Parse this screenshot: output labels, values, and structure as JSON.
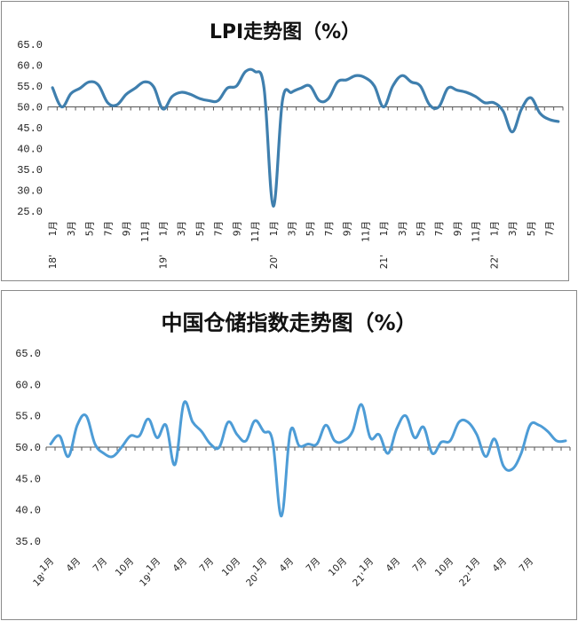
{
  "chart_data": [
    {
      "type": "line",
      "title": "LPI走势图（%）",
      "ylim": [
        25,
        65
      ],
      "yticks": [
        "25.0",
        "30.0",
        "35.0",
        "40.0",
        "45.0",
        "50.0",
        "55.0",
        "60.0",
        "65.0"
      ],
      "baseline": 50,
      "line_color": "#3f7fae",
      "x": [
        "18'1月",
        "2018-02",
        "3月",
        "2018-04",
        "5月",
        "2018-06",
        "7月",
        "2018-08",
        "9月",
        "2018-10",
        "11月",
        "2018-12",
        "19'1月",
        "2019-02",
        "3月",
        "2019-04",
        "5月",
        "2019-06",
        "7月",
        "2019-08",
        "9月",
        "2019-10",
        "11月",
        "2019-12",
        "20'1月",
        "2020-02",
        "3月",
        "2020-04",
        "5月",
        "2020-06",
        "7月",
        "2020-08",
        "9月",
        "2020-10",
        "11月",
        "2020-12",
        "21'1月",
        "2021-02",
        "3月",
        "2021-04",
        "5月",
        "2021-06",
        "7月",
        "2021-08",
        "9月",
        "2021-10",
        "11月",
        "2021-12",
        "22'1月",
        "2022-02",
        "3月",
        "2022-04",
        "5月",
        "2022-06",
        "7月",
        "2022-08"
      ],
      "tick_labels": [
        {
          "i": 0,
          "label": "1月"
        },
        {
          "i": 2,
          "label": "3月"
        },
        {
          "i": 4,
          "label": "5月"
        },
        {
          "i": 6,
          "label": "7月"
        },
        {
          "i": 8,
          "label": "9月"
        },
        {
          "i": 10,
          "label": "11月"
        },
        {
          "i": 12,
          "label": "1月"
        },
        {
          "i": 14,
          "label": "3月"
        },
        {
          "i": 16,
          "label": "5月"
        },
        {
          "i": 18,
          "label": "7月"
        },
        {
          "i": 20,
          "label": "9月"
        },
        {
          "i": 22,
          "label": "11月"
        },
        {
          "i": 24,
          "label": "1月"
        },
        {
          "i": 26,
          "label": "3月"
        },
        {
          "i": 28,
          "label": "5月"
        },
        {
          "i": 30,
          "label": "7月"
        },
        {
          "i": 32,
          "label": "9月"
        },
        {
          "i": 34,
          "label": "11月"
        },
        {
          "i": 36,
          "label": "1月"
        },
        {
          "i": 38,
          "label": "3月"
        },
        {
          "i": 40,
          "label": "5月"
        },
        {
          "i": 42,
          "label": "7月"
        },
        {
          "i": 44,
          "label": "9月"
        },
        {
          "i": 46,
          "label": "11月"
        },
        {
          "i": 48,
          "label": "1月"
        },
        {
          "i": 50,
          "label": "3月"
        },
        {
          "i": 52,
          "label": "5月"
        },
        {
          "i": 54,
          "label": "7月"
        }
      ],
      "year_labels": [
        {
          "i": 0,
          "label": "18'"
        },
        {
          "i": 12,
          "label": "19'"
        },
        {
          "i": 24,
          "label": "20'"
        },
        {
          "i": 36,
          "label": "21'"
        },
        {
          "i": 48,
          "label": "22'"
        }
      ],
      "values": [
        54.6,
        50.0,
        53.2,
        54.5,
        56.0,
        55.2,
        51.0,
        50.5,
        53.0,
        54.5,
        56.0,
        54.8,
        49.5,
        52.5,
        53.5,
        53.0,
        52.0,
        51.5,
        51.5,
        54.5,
        55.0,
        58.5,
        58.5,
        54.5,
        26.2,
        51.5,
        53.5,
        54.5,
        55.0,
        51.5,
        52.0,
        56.0,
        56.5,
        57.5,
        57.0,
        55.0,
        50.0,
        55.0,
        57.5,
        56.0,
        55.0,
        50.5,
        50.0,
        54.5,
        54.0,
        53.5,
        52.5,
        51.0,
        51.0,
        49.0,
        44.0,
        49.5,
        52.2,
        48.5,
        47.0,
        46.5
      ]
    },
    {
      "type": "line",
      "title": "中国仓储指数走势图（%）",
      "ylim": [
        35,
        65
      ],
      "yticks": [
        "35.0",
        "40.0",
        "45.0",
        "50.0",
        "55.0",
        "60.0",
        "65.0"
      ],
      "baseline": 50,
      "line_color": "#4d9cd6",
      "x": [
        "18'1月",
        "2018-02",
        "2018-03",
        "4月",
        "2018-05",
        "2018-06",
        "7月",
        "2018-08",
        "2018-09",
        "10月",
        "2018-11",
        "2018-12",
        "19'1月",
        "2019-02",
        "2019-03",
        "4月",
        "2019-05",
        "2019-06",
        "7月",
        "2019-08",
        "2019-09",
        "10月",
        "2019-11",
        "2019-12",
        "20'1月",
        "2020-02",
        "2020-03",
        "4月",
        "2020-05",
        "2020-06",
        "7月",
        "2020-08",
        "2020-09",
        "10月",
        "2020-11",
        "2020-12",
        "21'1月",
        "2021-02",
        "2021-03",
        "4月",
        "2021-05",
        "2021-06",
        "7月",
        "2021-08",
        "2021-09",
        "10月",
        "2021-11",
        "2021-12",
        "22'1月",
        "2022-02",
        "2022-03",
        "4月",
        "2022-05",
        "2022-06",
        "7月",
        "2022-08",
        "2022-09",
        "2022-10",
        "2022-11"
      ],
      "tick_labels": [
        {
          "i": 0,
          "label": "1月"
        },
        {
          "i": 3,
          "label": "4月"
        },
        {
          "i": 6,
          "label": "7月"
        },
        {
          "i": 9,
          "label": "10月"
        },
        {
          "i": 12,
          "label": "1月"
        },
        {
          "i": 15,
          "label": "4月"
        },
        {
          "i": 18,
          "label": "7月"
        },
        {
          "i": 21,
          "label": "10月"
        },
        {
          "i": 24,
          "label": "1月"
        },
        {
          "i": 27,
          "label": "4月"
        },
        {
          "i": 30,
          "label": "7月"
        },
        {
          "i": 33,
          "label": "10月"
        },
        {
          "i": 36,
          "label": "1月"
        },
        {
          "i": 39,
          "label": "4月"
        },
        {
          "i": 42,
          "label": "7月"
        },
        {
          "i": 45,
          "label": "10月"
        },
        {
          "i": 48,
          "label": "1月"
        },
        {
          "i": 51,
          "label": "4月"
        },
        {
          "i": 54,
          "label": "7月"
        }
      ],
      "year_labels": [
        {
          "i": 0,
          "label": "18'"
        },
        {
          "i": 12,
          "label": "19'"
        },
        {
          "i": 24,
          "label": "20'"
        },
        {
          "i": 36,
          "label": "21'"
        },
        {
          "i": 48,
          "label": "22'"
        }
      ],
      "values": [
        50.5,
        51.8,
        48.5,
        53.5,
        55.0,
        50.5,
        49.0,
        48.5,
        50.0,
        51.8,
        51.8,
        54.5,
        51.5,
        53.5,
        47.2,
        57.0,
        54.0,
        52.5,
        50.5,
        50.0,
        54.0,
        52.0,
        51.0,
        54.2,
        52.5,
        51.0,
        39.0,
        52.5,
        50.2,
        50.5,
        50.5,
        53.5,
        51.0,
        51.0,
        52.5,
        56.8,
        51.5,
        52.0,
        49.0,
        53.0,
        55.0,
        51.5,
        53.2,
        49.0,
        50.8,
        51.0,
        54.0,
        54.0,
        52.0,
        48.5,
        51.3,
        47.0,
        46.5,
        49.0,
        53.5,
        53.5,
        52.5,
        51.0,
        51.0
      ]
    }
  ]
}
